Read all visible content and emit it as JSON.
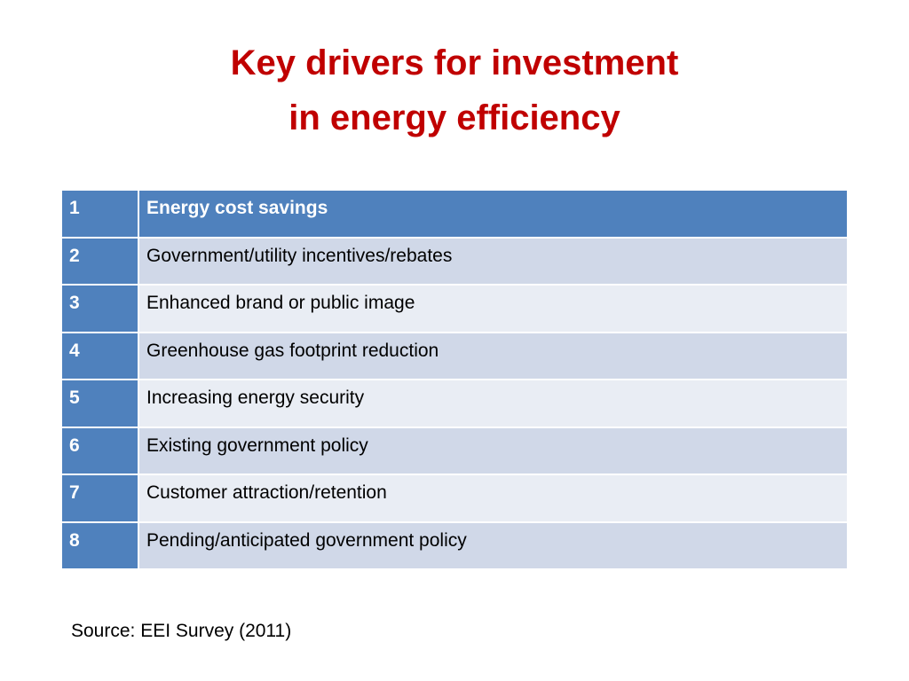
{
  "title": [
    "Key drivers for investment",
    "in energy efficiency"
  ],
  "table": {
    "rows": [
      [
        1,
        "Energy cost savings"
      ],
      [
        2,
        "Government/utility incentives/rebates"
      ],
      [
        3,
        "Enhanced brand or public image"
      ],
      [
        4,
        "Greenhouse gas footprint reduction"
      ],
      [
        5,
        "Increasing energy security"
      ],
      [
        6,
        "Existing government policy"
      ],
      [
        7,
        "Customer attraction/retention"
      ],
      [
        8,
        "Pending/anticipated government policy"
      ]
    ]
  },
  "source": "Source: EEI Survey (2011)"
}
